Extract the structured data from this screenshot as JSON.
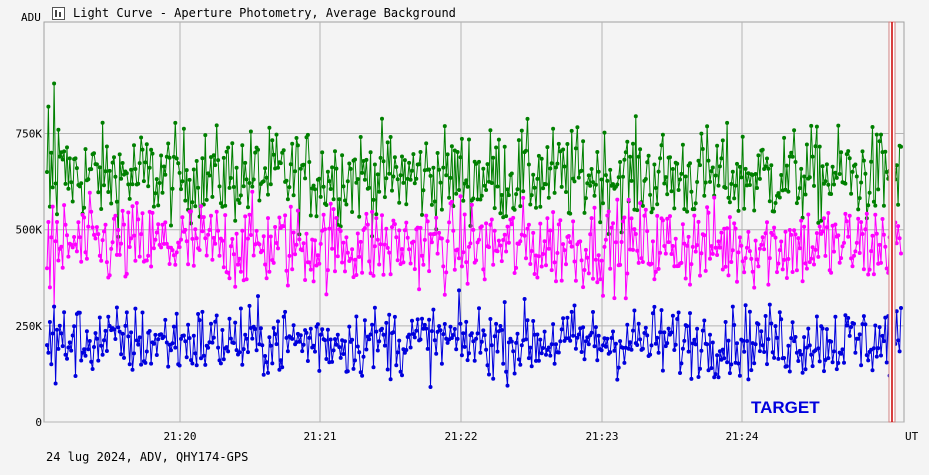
{
  "window": {
    "title": "Light Curve - Aperture Photometry, Average Background",
    "icon": "chart-window-icon"
  },
  "footer": {
    "text": "24 lug 2024, ADV, QHY174-GPS"
  },
  "colors": {
    "series1": "#008000",
    "series2": "#ff00ff",
    "series3": "#0000dd",
    "marker": "#cc0000",
    "label": "#0000dd",
    "grid": "#a0a0a0",
    "background": "#f4f4f4"
  },
  "chart_data": {
    "type": "line",
    "title": "Light Curve - Aperture Photometry, Average Background",
    "xlabel": "UT",
    "ylabel": "ADU",
    "x_ticks": [
      "21:20",
      "21:21",
      "21:22",
      "21:23",
      "21:24"
    ],
    "y_ticks": [
      "0",
      "250K",
      "500K",
      "750K"
    ],
    "y_tick_values": [
      0,
      250000,
      500000,
      750000
    ],
    "xlim": [
      "21:19:09",
      "21:25:13"
    ],
    "ylim": [
      0,
      1040000
    ],
    "grid": true,
    "annotation": "TARGET",
    "series": [
      {
        "color": "#008000",
        "mean": 640000,
        "spread": 60000,
        "points": 600,
        "sample_values": [
          650000,
          820000,
          560000,
          700000,
          610000,
          880000,
          620000,
          540000,
          760000,
          690000
        ]
      },
      {
        "color": "#ff00ff",
        "mean": 460000,
        "spread": 55000,
        "points": 600,
        "sample_values": [
          400000,
          520000,
          350000,
          480000,
          560000,
          300000,
          470000,
          520000,
          420000,
          450000
        ]
      },
      {
        "color": "#0000dd",
        "mean": 210000,
        "spread": 45000,
        "points": 600,
        "sample_values": [
          200000,
          180000,
          260000,
          150000,
          230000,
          300000,
          100000,
          240000,
          190000,
          250000
        ]
      }
    ],
    "marker_time": "21:25:09"
  }
}
